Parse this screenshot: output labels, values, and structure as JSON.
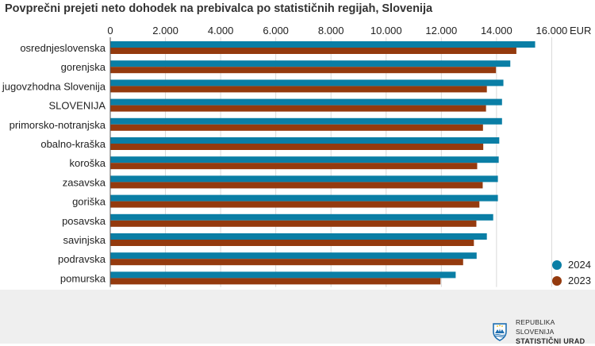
{
  "chart_data": {
    "type": "bar",
    "orientation": "horizontal",
    "title": "Povprečni prejeti neto dohodek na prebivalca po statističnih regijah, Slovenija",
    "unit": "EUR",
    "xlim": [
      0,
      17000
    ],
    "ticks": [
      0,
      2000,
      4000,
      6000,
      8000,
      10000,
      12000,
      14000,
      16000
    ],
    "tick_labels": [
      "0",
      "2.000",
      "4.000",
      "6.000",
      "8.000",
      "10.000",
      "12.000",
      "14.000",
      "16.000"
    ],
    "grid": true,
    "legend_position": "bottom-right",
    "categories": [
      "osrednjeslovenska",
      "gorenjska",
      "jugovzhodna Slovenija",
      "SLOVENIJA",
      "primorsko-notranjska",
      "obalno-kraška",
      "koroška",
      "zasavska",
      "goriška",
      "posavska",
      "savinjska",
      "podravska",
      "pomurska"
    ],
    "series": [
      {
        "name": "2024",
        "color": "#0a7ea5",
        "values": [
          15400,
          14500,
          14250,
          14200,
          14200,
          14100,
          14080,
          14050,
          14050,
          13880,
          13650,
          13280,
          12520
        ]
      },
      {
        "name": "2023",
        "color": "#943a0e",
        "values": [
          14720,
          13980,
          13650,
          13620,
          13510,
          13520,
          13300,
          13500,
          13380,
          13270,
          13180,
          12790,
          11970
        ]
      }
    ]
  },
  "footer": {
    "org_line1": "REPUBLIKA SLOVENIJA",
    "org_line2": "STATISTIČNI URAD",
    "background": "#efefef"
  }
}
